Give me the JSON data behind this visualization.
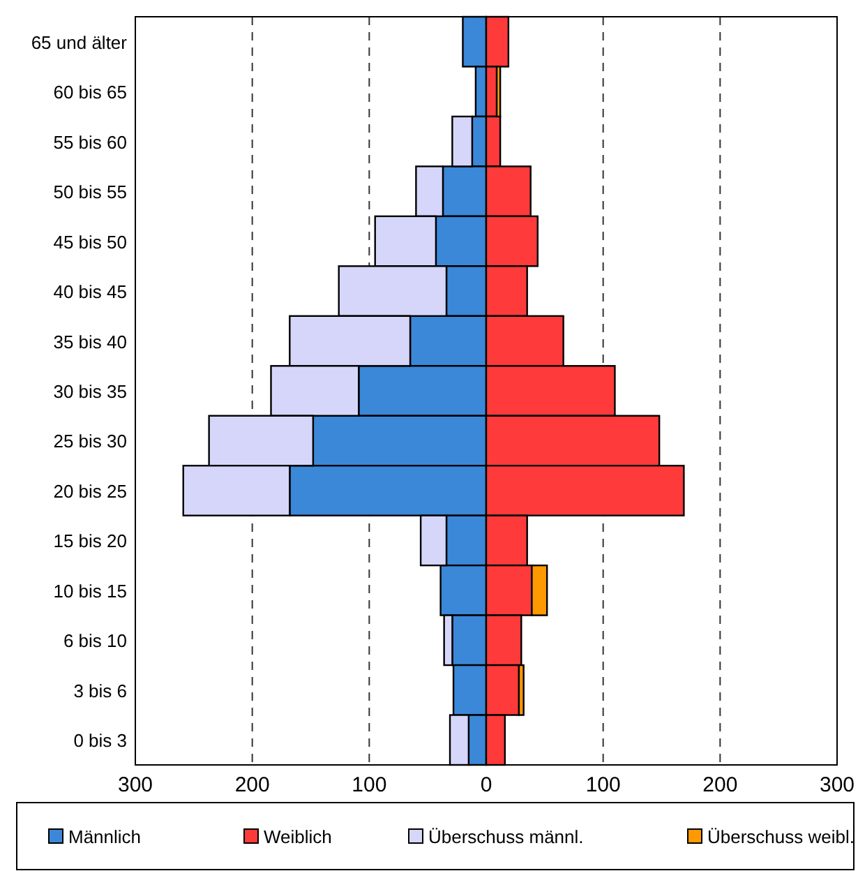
{
  "chart_data": {
    "type": "bar",
    "orientation": "horizontal",
    "stacked": true,
    "categories": [
      "65 und älter",
      "60 bis 65",
      "55 bis 60",
      "50 bis 55",
      "45 bis 50",
      "40 bis 45",
      "35 bis 40",
      "30 bis 35",
      "25 bis 30",
      "20 bis 25",
      "15 bis 20",
      "10 bis 15",
      "6 bis 10",
      "3 bis 6",
      "0 bis 3"
    ],
    "series": [
      {
        "name": "Männlich",
        "color": "#3b87d8",
        "values": [
          -20,
          -9,
          -12,
          -37,
          -43,
          -34,
          -65,
          -109,
          -148,
          -168,
          -34,
          -39,
          -29,
          -28,
          -15
        ]
      },
      {
        "name": "Weiblich",
        "color": "#ff3a3a",
        "values": [
          19,
          9,
          12,
          38,
          44,
          35,
          66,
          110,
          148,
          169,
          35,
          39,
          30,
          28,
          16
        ]
      },
      {
        "name": "Überschuss männl.",
        "color": "#d6d6fa",
        "values": [
          0,
          0,
          -17,
          -23,
          -52,
          -92,
          -103,
          -75,
          -89,
          -91,
          -22,
          0,
          -7,
          0,
          -16
        ]
      },
      {
        "name": "Überschuss weibl.",
        "color": "#ff9900",
        "values": [
          0,
          3,
          0,
          0,
          0,
          0,
          0,
          0,
          0,
          0,
          0,
          13,
          0,
          4,
          0
        ]
      }
    ],
    "xlim": [
      -300,
      300
    ],
    "xticks": [
      {
        "value": -300,
        "label": "300"
      },
      {
        "value": -200,
        "label": "200"
      },
      {
        "value": -100,
        "label": "100"
      },
      0,
      100,
      200,
      300
    ],
    "grid": "x",
    "legend": "bottom"
  }
}
